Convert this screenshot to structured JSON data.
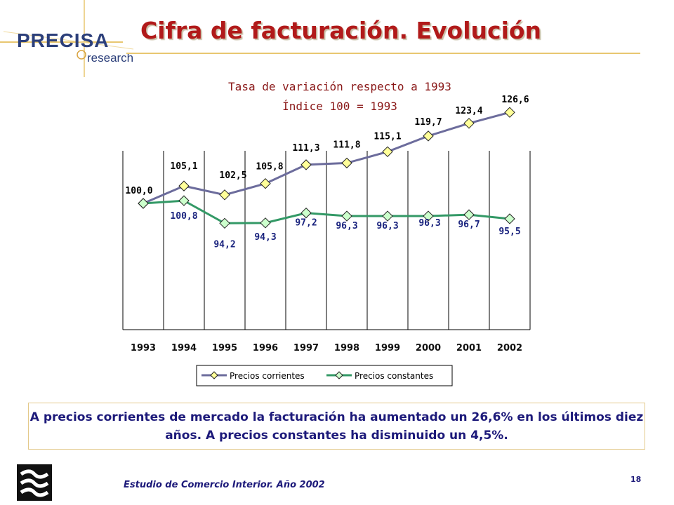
{
  "logo": {
    "brand": "PRECISA",
    "sub": "research"
  },
  "title": "Cifra de facturación. Evolución",
  "subtitle_lines": [
    "Tasa de variación respecto a 1993",
    "Índice 100 = 1993"
  ],
  "chart_data": {
    "type": "line",
    "categories": [
      "1993",
      "1994",
      "1995",
      "1996",
      "1997",
      "1998",
      "1999",
      "2000",
      "2001",
      "2002"
    ],
    "series": [
      {
        "name": "Precios corrientes",
        "color": "#6c6c9c",
        "marker_fill": "#ffff99",
        "values": [
          100.0,
          105.1,
          102.5,
          105.8,
          111.3,
          111.8,
          115.1,
          119.7,
          123.4,
          126.6
        ],
        "labels": [
          "100,0",
          "105,1",
          "102,5",
          "105,8",
          "111,3",
          "111,8",
          "115,1",
          "119,7",
          "123,4",
          "126,6"
        ]
      },
      {
        "name": "Precios constantes",
        "color": "#339966",
        "marker_fill": "#ccffcc",
        "values": [
          100.0,
          100.8,
          94.2,
          94.3,
          97.2,
          96.3,
          96.3,
          96.3,
          96.7,
          95.5
        ],
        "labels": [
          "",
          "100,8",
          "94,2",
          "94,3",
          "97,2",
          "96,3",
          "96,3",
          "96,3",
          "96,7",
          "95,5"
        ]
      }
    ],
    "grid": true,
    "legend": "bottom"
  },
  "note": "A precios corrientes de mercado la facturación ha aumentado un 26,6% en los últimos diez años. A precios constantes ha disminuido un 4,5%.",
  "footer": "Estudio de Comercio Interior. Año 2002",
  "page_number": "18"
}
